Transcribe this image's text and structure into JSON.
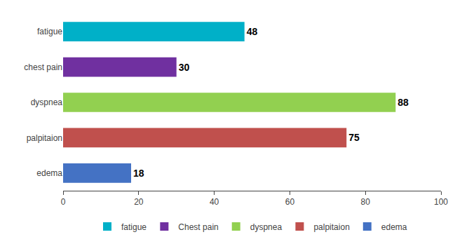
{
  "chart_data": {
    "type": "bar",
    "orientation": "horizontal",
    "categories": [
      "fatigue",
      "chest pain",
      "dyspnea",
      "palpitaion",
      "edema"
    ],
    "series": [
      {
        "name": "fatigue",
        "color": "#00b0c8",
        "values": [
          48,
          null,
          null,
          null,
          null
        ]
      },
      {
        "name": "Chest pain",
        "color": "#7030a0",
        "values": [
          null,
          30,
          null,
          null,
          null
        ]
      },
      {
        "name": "dyspnea",
        "color": "#92d050",
        "values": [
          null,
          null,
          88,
          null,
          null
        ]
      },
      {
        "name": "palpitaion",
        "color": "#c0504d",
        "values": [
          null,
          null,
          null,
          75,
          null
        ]
      },
      {
        "name": "edema",
        "color": "#4472c4",
        "values": [
          null,
          null,
          null,
          null,
          18
        ]
      }
    ],
    "xlim": [
      0,
      100
    ],
    "xticks": [
      0,
      20,
      40,
      60,
      80,
      100
    ],
    "grid": false,
    "legend": "bottom",
    "data_labels": true
  }
}
